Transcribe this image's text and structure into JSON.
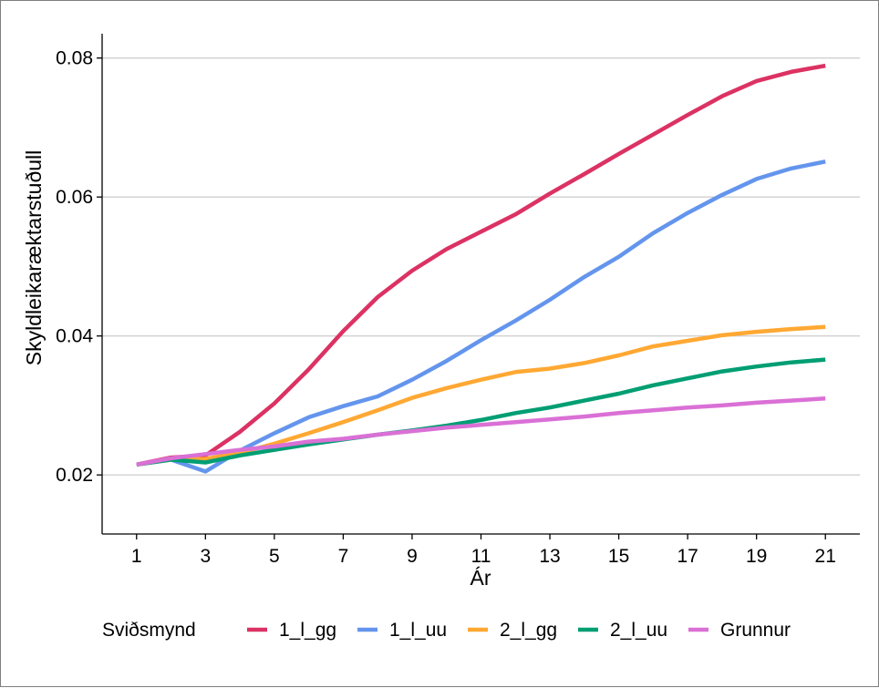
{
  "chart_data": {
    "type": "line",
    "title": "",
    "xlabel": "Ár",
    "ylabel": "Skyldleikaræktarstuðull",
    "xlim": [
      0,
      22
    ],
    "ylim": [
      0.0115,
      0.0835
    ],
    "x_ticks": [
      1,
      3,
      5,
      7,
      9,
      11,
      13,
      15,
      17,
      19,
      21
    ],
    "y_ticks": [
      0.02,
      0.04,
      0.06,
      0.08
    ],
    "y_tick_labels": [
      "0.02",
      "0.04",
      "0.06",
      "0.08"
    ],
    "grid": "horizontal major lines",
    "legend_position": "bottom",
    "legend_title": "Sviðsmynd",
    "x": [
      1,
      2,
      3,
      4,
      5,
      6,
      7,
      8,
      9,
      10,
      11,
      12,
      13,
      14,
      15,
      16,
      17,
      18,
      19,
      20,
      21
    ],
    "series": [
      {
        "name": "1_l_gg",
        "color": "#DC3263",
        "values": [
          0.0215,
          0.0225,
          0.0228,
          0.0262,
          0.0303,
          0.0352,
          0.0407,
          0.0456,
          0.0494,
          0.0525,
          0.055,
          0.0575,
          0.0605,
          0.0633,
          0.0662,
          0.069,
          0.0718,
          0.0745,
          0.0767,
          0.078,
          0.0789
        ]
      },
      {
        "name": "1_l_uu",
        "color": "#6495ED",
        "values": [
          0.0215,
          0.0222,
          0.0205,
          0.0235,
          0.026,
          0.0283,
          0.0299,
          0.0313,
          0.0337,
          0.0364,
          0.0394,
          0.0422,
          0.0452,
          0.0485,
          0.0514,
          0.0548,
          0.0577,
          0.0603,
          0.0626,
          0.0641,
          0.0651
        ]
      },
      {
        "name": "2_l_gg",
        "color": "#FFA833",
        "values": [
          0.0215,
          0.0222,
          0.0223,
          0.0232,
          0.0245,
          0.026,
          0.0276,
          0.0293,
          0.0311,
          0.0325,
          0.0337,
          0.0348,
          0.0353,
          0.0361,
          0.0372,
          0.0385,
          0.0393,
          0.0401,
          0.0406,
          0.041,
          0.0413
        ]
      },
      {
        "name": "2_l_uu",
        "color": "#009E73",
        "values": [
          0.0215,
          0.0222,
          0.0218,
          0.0228,
          0.0236,
          0.0244,
          0.0251,
          0.0258,
          0.0264,
          0.0271,
          0.0279,
          0.0289,
          0.0297,
          0.0307,
          0.0317,
          0.0329,
          0.0339,
          0.0349,
          0.0356,
          0.0362,
          0.0366
        ]
      },
      {
        "name": "Grunnur",
        "color": "#DA70D6",
        "values": [
          0.0215,
          0.0224,
          0.023,
          0.0236,
          0.0241,
          0.0248,
          0.0252,
          0.0258,
          0.0263,
          0.0268,
          0.0272,
          0.0276,
          0.028,
          0.0284,
          0.0289,
          0.0293,
          0.0297,
          0.03,
          0.0304,
          0.0307,
          0.031
        ]
      }
    ]
  }
}
